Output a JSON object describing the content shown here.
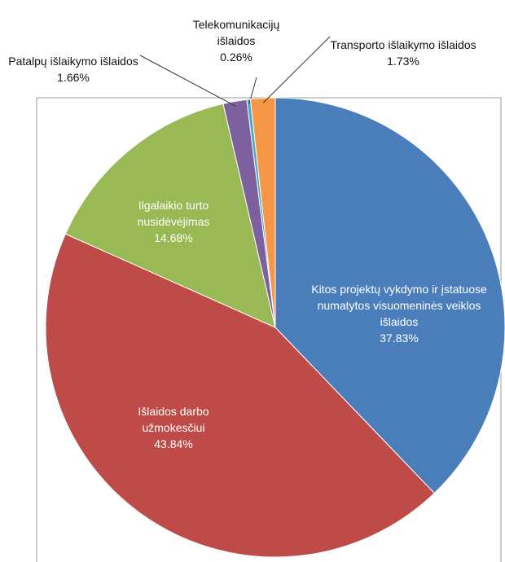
{
  "chart_data": {
    "type": "pie",
    "categories": [
      "Kitos projektų vykdymo ir įstatuose numatytos visuomeninės veiklos išlaidos",
      "Išlaidos darbo užmokesčiui",
      "Ilgalaikio turto nusidėvėjimas",
      "Patalpų išlaikymo išlaidos",
      "Telekomunikacijų išlaidos",
      "Transporto išlaikymo išlaidos"
    ],
    "values": [
      37.83,
      43.84,
      14.68,
      1.66,
      0.26,
      1.73
    ],
    "value_labels": [
      "37.83%",
      "43.84%",
      "14.68%",
      "1.66%",
      "0.26%",
      "1.73%"
    ],
    "colors": [
      "#4a7ebb",
      "#be4b48",
      "#98b954",
      "#7d60a0",
      "#46aac5",
      "#f79646"
    ]
  }
}
